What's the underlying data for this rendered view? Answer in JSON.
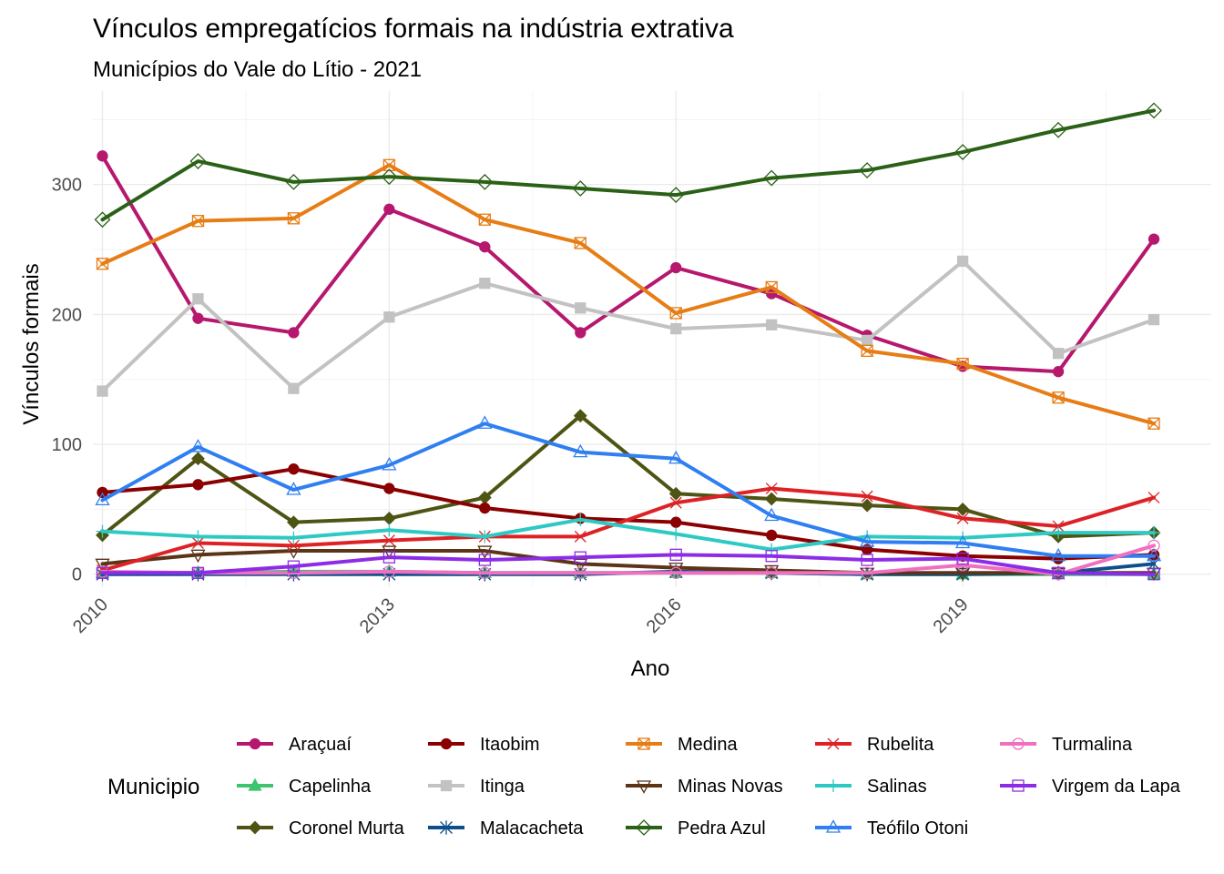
{
  "chart_data": {
    "type": "line",
    "title": "Vínculos empregatícios formais na indústria extrativa",
    "subtitle": "Municípios do Vale do Lítio - 2021",
    "xlabel": "Ano",
    "ylabel": "Vínculos formais",
    "x": [
      2010,
      2011,
      2012,
      2013,
      2014,
      2015,
      2016,
      2017,
      2018,
      2019,
      2020,
      2021
    ],
    "x_ticks": [
      "2010",
      "2013",
      "2016",
      "2019"
    ],
    "x_tick_values": [
      2010,
      2013,
      2016,
      2019
    ],
    "y_ticks": [
      "0",
      "100",
      "200",
      "300"
    ],
    "y_tick_values": [
      0,
      100,
      200,
      300
    ],
    "xlim": [
      2009.9,
      2021.6
    ],
    "ylim": [
      -10,
      372
    ],
    "grid": true,
    "legend_title": "Municipio",
    "legend_position": "bottom",
    "series": [
      {
        "name": "Araçuaí",
        "color": "#b5186d",
        "marker": "circle",
        "values": [
          322,
          197,
          186,
          281,
          252,
          186,
          236,
          216,
          184,
          160,
          156,
          258
        ]
      },
      {
        "name": "Capelinha",
        "color": "#3cc46e",
        "marker": "triangle-filled",
        "values": [
          1,
          1,
          2,
          2,
          1,
          1,
          1,
          1,
          0,
          0,
          0,
          0
        ]
      },
      {
        "name": "Coronel Murta",
        "color": "#4e5413",
        "marker": "diamond-filled",
        "values": [
          30,
          89,
          40,
          43,
          59,
          122,
          62,
          58,
          53,
          50,
          29,
          32
        ]
      },
      {
        "name": "Itaobim",
        "color": "#8b0000",
        "marker": "circle",
        "values": [
          63,
          69,
          81,
          66,
          51,
          43,
          40,
          30,
          19,
          14,
          12,
          15
        ]
      },
      {
        "name": "Itinga",
        "color": "#c2c2c2",
        "marker": "square-filled",
        "values": [
          141,
          212,
          143,
          198,
          224,
          205,
          189,
          192,
          180,
          241,
          170,
          196
        ]
      },
      {
        "name": "Malacacheta",
        "color": "#0d4f8b",
        "marker": "asterisk",
        "values": [
          0,
          0,
          0,
          0,
          0,
          0,
          2,
          1,
          0,
          0,
          1,
          8
        ]
      },
      {
        "name": "Medina",
        "color": "#e67d15",
        "marker": "square-x",
        "values": [
          239,
          272,
          274,
          315,
          273,
          255,
          201,
          221,
          172,
          162,
          136,
          116
        ]
      },
      {
        "name": "Minas Novas",
        "color": "#5c3417",
        "marker": "triangle-down-open",
        "values": [
          8,
          15,
          18,
          18,
          18,
          8,
          5,
          3,
          1,
          1,
          1,
          1
        ]
      },
      {
        "name": "Pedra Azul",
        "color": "#2a6116",
        "marker": "diamond-open",
        "values": [
          273,
          318,
          302,
          306,
          302,
          297,
          292,
          305,
          311,
          325,
          342,
          357
        ]
      },
      {
        "name": "Rubelita",
        "color": "#dd2226",
        "marker": "x",
        "values": [
          3,
          24,
          22,
          26,
          29,
          29,
          55,
          66,
          60,
          43,
          37,
          59
        ]
      },
      {
        "name": "Salinas",
        "color": "#2ec9c3",
        "marker": "plus",
        "values": [
          33,
          29,
          28,
          34,
          29,
          42,
          31,
          19,
          29,
          28,
          32,
          32
        ]
      },
      {
        "name": "Teófilo Otoni",
        "color": "#2f7ff2",
        "marker": "triangle-open",
        "values": [
          57,
          98,
          65,
          84,
          116,
          94,
          89,
          45,
          25,
          24,
          14,
          14
        ]
      },
      {
        "name": "Turmalina",
        "color": "#f06fc0",
        "marker": "circle-open",
        "values": [
          2,
          1,
          1,
          2,
          1,
          1,
          1,
          1,
          1,
          7,
          0,
          22
        ]
      },
      {
        "name": "Virgem da Lapa",
        "color": "#8d2ce6",
        "marker": "square-open",
        "values": [
          1,
          1,
          6,
          13,
          11,
          13,
          15,
          14,
          11,
          12,
          1,
          0
        ]
      }
    ]
  }
}
